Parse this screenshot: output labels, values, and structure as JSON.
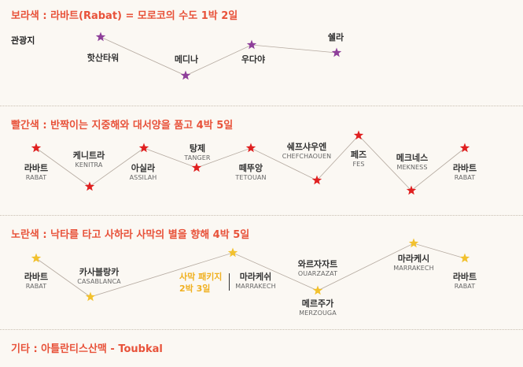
{
  "colors": {
    "purple": "#8e3f9a",
    "red": "#e02020",
    "yellow": "#f2c12e",
    "title": "#e8523a"
  },
  "sections": {
    "purple": {
      "title": "보라색 : 라바트(Rabat) = 모로코의 수도 1박 2일",
      "row_label": "관광지",
      "stops": [
        {
          "ko": "핫산타워"
        },
        {
          "ko": "메디나"
        },
        {
          "ko": "우다야"
        },
        {
          "ko": "쉘라"
        }
      ]
    },
    "red": {
      "title": "빨간색 : 반짝이는 지중해와 대서양을 품고 4박 5일",
      "stops": [
        {
          "ko": "라바트",
          "en": "RABAT"
        },
        {
          "ko": "케니트라",
          "en": "KENITRA"
        },
        {
          "ko": "아실라",
          "en": "ASSILAH"
        },
        {
          "ko": "탕제",
          "en": "TANGER"
        },
        {
          "ko": "떼뚜앙",
          "en": "TETOUAN"
        },
        {
          "ko": "쉐프샤우엔",
          "en": "CHEFCHAOUEN"
        },
        {
          "ko": "페즈",
          "en": "FES"
        },
        {
          "ko": "메크네스",
          "en": "MEKNESS"
        },
        {
          "ko": "라바트",
          "en": "RABAT"
        }
      ]
    },
    "yellow": {
      "title": "노란색 : 낙타를 타고 사하라 사막의 별을 향해 4박 5일",
      "package": {
        "line1": "사막 패키지",
        "line2": "2박 3일"
      },
      "stops": [
        {
          "ko": "라바트",
          "en": "RABAT"
        },
        {
          "ko": "카사블랑카",
          "en": "CASABLANCA"
        },
        {
          "ko": "마라케쉬",
          "en": "MARRAKECH"
        },
        {
          "ko": "메르주가",
          "en": "MERZOUGA"
        },
        {
          "ko": "와르자자트",
          "en": "OUARZAZAT"
        },
        {
          "ko": "마라케시",
          "en": "MARRAKECH"
        },
        {
          "ko": "라바트",
          "en": "RABAT"
        }
      ]
    },
    "other": {
      "title": "기타 : 아틀란티스산맥 - Toubkal"
    }
  }
}
